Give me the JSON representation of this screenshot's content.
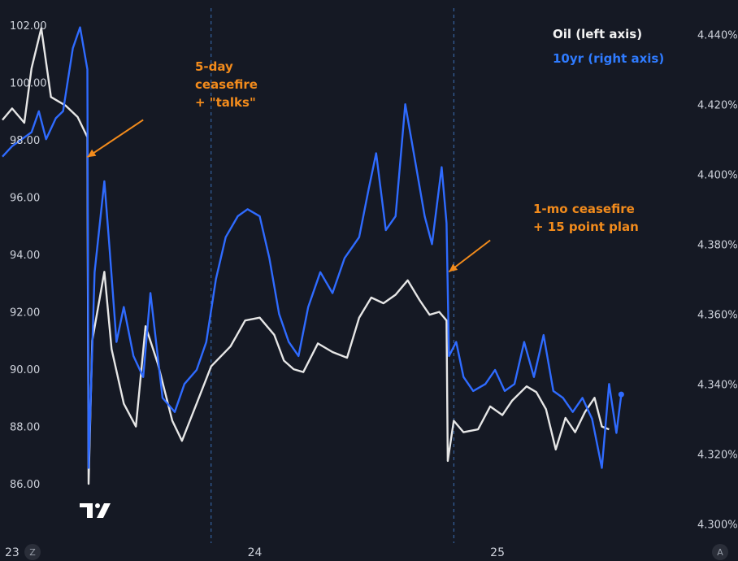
{
  "colors": {
    "background": "#151924",
    "oil": "#e6e6e6",
    "tenyr": "#2f6bff",
    "annotation": "#f28b1c",
    "separator": "#3b6fb6",
    "tick_text": "#cfd3dc"
  },
  "icons": {
    "logo": "tradingview-logo-icon",
    "left_corner": "z-scale-button",
    "right_corner": "a-scale-button"
  },
  "corner_buttons": {
    "left": "Z",
    "right": "A"
  },
  "chart_data": {
    "type": "line",
    "legend": {
      "oil": "Oil (left axis)",
      "tenyr": "10yr (right axis)",
      "placement": "top-right"
    },
    "x_ticks": [
      {
        "label": "23",
        "t": 0.0
      },
      {
        "label": "24",
        "t": 1.0
      },
      {
        "label": "25",
        "t": 2.0
      }
    ],
    "x_range": [
      -0.05,
      2.77
    ],
    "session_separators": [
      0.82,
      1.82
    ],
    "y_left": {
      "range": [
        84.3,
        102.6
      ],
      "ticks": [
        {
          "v": 102,
          "label": "102.00"
        },
        {
          "v": 100,
          "label": "100.00"
        },
        {
          "v": 98,
          "label": "98.00"
        },
        {
          "v": 96,
          "label": "96.00"
        },
        {
          "v": 94,
          "label": "94.00"
        },
        {
          "v": 92,
          "label": "92.00"
        },
        {
          "v": 90,
          "label": "90.00"
        },
        {
          "v": 88,
          "label": "88.00"
        },
        {
          "v": 86,
          "label": "86.00"
        }
      ]
    },
    "y_right": {
      "range": [
        4.2975,
        4.4475
      ],
      "ticks": [
        {
          "v": 4.44,
          "label": "4.440%"
        },
        {
          "v": 4.42,
          "label": "4.420%"
        },
        {
          "v": 4.4,
          "label": "4.400%"
        },
        {
          "v": 4.38,
          "label": "4.380%"
        },
        {
          "v": 4.36,
          "label": "4.360%"
        },
        {
          "v": 4.34,
          "label": "4.340%"
        },
        {
          "v": 4.32,
          "label": "4.320%"
        },
        {
          "v": 4.3,
          "label": "4.300%"
        }
      ]
    },
    "series": [
      {
        "name": "Oil",
        "axis": "left",
        "points": [
          [
            -0.04,
            98.7
          ],
          [
            0.0,
            99.1
          ],
          [
            0.05,
            98.6
          ],
          [
            0.08,
            100.5
          ],
          [
            0.12,
            101.9
          ],
          [
            0.16,
            99.5
          ],
          [
            0.22,
            99.2
          ],
          [
            0.27,
            98.8
          ],
          [
            0.31,
            98.1
          ],
          [
            0.315,
            86.0
          ],
          [
            0.33,
            91.0
          ],
          [
            0.38,
            93.4
          ],
          [
            0.41,
            90.7
          ],
          [
            0.46,
            88.8
          ],
          [
            0.51,
            88.0
          ],
          [
            0.55,
            91.5
          ],
          [
            0.6,
            90.2
          ],
          [
            0.66,
            88.2
          ],
          [
            0.7,
            87.5
          ],
          [
            0.76,
            88.8
          ],
          [
            0.82,
            90.1
          ],
          [
            0.9,
            90.8
          ],
          [
            0.96,
            91.7
          ],
          [
            1.02,
            91.8
          ],
          [
            1.08,
            91.2
          ],
          [
            1.12,
            90.3
          ],
          [
            1.16,
            90.0
          ],
          [
            1.2,
            89.9
          ],
          [
            1.26,
            90.9
          ],
          [
            1.32,
            90.6
          ],
          [
            1.38,
            90.4
          ],
          [
            1.43,
            91.8
          ],
          [
            1.48,
            92.5
          ],
          [
            1.53,
            92.3
          ],
          [
            1.58,
            92.6
          ],
          [
            1.63,
            93.1
          ],
          [
            1.68,
            92.4
          ],
          [
            1.72,
            91.9
          ],
          [
            1.76,
            92.0
          ],
          [
            1.79,
            91.7
          ],
          [
            1.795,
            86.8
          ],
          [
            1.82,
            88.2
          ],
          [
            1.86,
            87.8
          ],
          [
            1.92,
            87.9
          ],
          [
            1.97,
            88.7
          ],
          [
            2.02,
            88.4
          ],
          [
            2.06,
            88.9
          ],
          [
            2.12,
            89.4
          ],
          [
            2.16,
            89.2
          ],
          [
            2.2,
            88.6
          ],
          [
            2.24,
            87.2
          ],
          [
            2.28,
            88.3
          ],
          [
            2.32,
            87.8
          ],
          [
            2.36,
            88.5
          ],
          [
            2.4,
            89.0
          ],
          [
            2.43,
            88.0
          ],
          [
            2.46,
            87.9
          ]
        ]
      },
      {
        "name": "10yr",
        "axis": "right",
        "points": [
          [
            -0.04,
            4.405
          ],
          [
            0.0,
            4.408
          ],
          [
            0.04,
            4.41
          ],
          [
            0.08,
            4.412
          ],
          [
            0.11,
            4.418
          ],
          [
            0.14,
            4.41
          ],
          [
            0.18,
            4.416
          ],
          [
            0.21,
            4.418
          ],
          [
            0.25,
            4.436
          ],
          [
            0.28,
            4.442
          ],
          [
            0.31,
            4.43
          ],
          [
            0.315,
            4.316
          ],
          [
            0.34,
            4.372
          ],
          [
            0.38,
            4.398
          ],
          [
            0.4,
            4.38
          ],
          [
            0.43,
            4.352
          ],
          [
            0.46,
            4.362
          ],
          [
            0.5,
            4.348
          ],
          [
            0.54,
            4.342
          ],
          [
            0.57,
            4.366
          ],
          [
            0.62,
            4.336
          ],
          [
            0.67,
            4.332
          ],
          [
            0.71,
            4.34
          ],
          [
            0.76,
            4.344
          ],
          [
            0.8,
            4.352
          ],
          [
            0.84,
            4.37
          ],
          [
            0.88,
            4.382
          ],
          [
            0.93,
            4.388
          ],
          [
            0.97,
            4.39
          ],
          [
            1.02,
            4.388
          ],
          [
            1.06,
            4.376
          ],
          [
            1.1,
            4.36
          ],
          [
            1.14,
            4.352
          ],
          [
            1.18,
            4.348
          ],
          [
            1.22,
            4.362
          ],
          [
            1.27,
            4.372
          ],
          [
            1.32,
            4.366
          ],
          [
            1.37,
            4.376
          ],
          [
            1.43,
            4.382
          ],
          [
            1.47,
            4.396
          ],
          [
            1.5,
            4.406
          ],
          [
            1.54,
            4.384
          ],
          [
            1.58,
            4.388
          ],
          [
            1.62,
            4.42
          ],
          [
            1.66,
            4.404
          ],
          [
            1.7,
            4.388
          ],
          [
            1.73,
            4.38
          ],
          [
            1.77,
            4.402
          ],
          [
            1.79,
            4.386
          ],
          [
            1.8,
            4.348
          ],
          [
            1.83,
            4.352
          ],
          [
            1.86,
            4.342
          ],
          [
            1.9,
            4.338
          ],
          [
            1.95,
            4.34
          ],
          [
            1.99,
            4.344
          ],
          [
            2.03,
            4.338
          ],
          [
            2.07,
            4.34
          ],
          [
            2.11,
            4.352
          ],
          [
            2.15,
            4.342
          ],
          [
            2.19,
            4.354
          ],
          [
            2.23,
            4.338
          ],
          [
            2.27,
            4.336
          ],
          [
            2.31,
            4.332
          ],
          [
            2.35,
            4.336
          ],
          [
            2.39,
            4.33
          ],
          [
            2.43,
            4.316
          ],
          [
            2.46,
            4.34
          ],
          [
            2.49,
            4.326
          ],
          [
            2.51,
            4.337
          ]
        ]
      }
    ],
    "annotations": [
      {
        "lines": [
          "5-day",
          "ceasefire",
          "+ \"talks\""
        ],
        "arrow_to": [
          0.31,
          97.4
        ],
        "arrow_from": [
          0.54,
          98.7
        ],
        "text_at": [
          0.72,
          100.6
        ]
      },
      {
        "lines": [
          "1-mo ceasefire",
          "+ 15 point plan"
        ],
        "arrow_to": [
          1.8,
          93.4
        ],
        "arrow_from": [
          1.97,
          94.5
        ],
        "text_at": [
          2.1,
          95.9
        ]
      }
    ]
  }
}
